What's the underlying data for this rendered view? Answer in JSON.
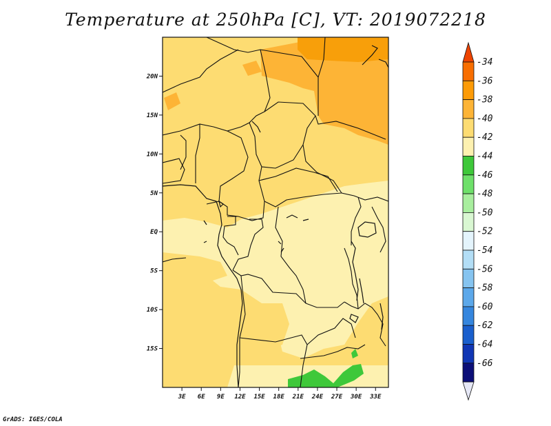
{
  "title": "Temperature at 250hPa [C], VT: 2019072218",
  "footer": "GrADS: IGES/COLA",
  "map": {
    "lon_range": [
      0,
      35
    ],
    "lat_range": [
      -20,
      25
    ],
    "lon_ticks": [
      "3E",
      "6E",
      "9E",
      "12E",
      "15E",
      "18E",
      "21E",
      "24E",
      "27E",
      "30E",
      "33E"
    ],
    "lat_ticks": [
      "20N",
      "15N",
      "10N",
      "5N",
      "EQ",
      "5S",
      "10S",
      "15S"
    ],
    "background_field": "#fdf1b0"
  },
  "colorbar": {
    "labels": [
      "-34",
      "-36",
      "-38",
      "-40",
      "-42",
      "-44",
      "-46",
      "-48",
      "-50",
      "-52",
      "-54",
      "-56",
      "-58",
      "-60",
      "-62",
      "-64",
      "-66"
    ],
    "colors": [
      "#ee4400",
      "#f86e00",
      "#fd9b07",
      "#fdb436",
      "#fddc72",
      "#fdf1b0",
      "#3ec83a",
      "#6ee06a",
      "#a8ee9e",
      "#d9f7d2",
      "#e4f4fc",
      "#b3def6",
      "#86c4f0",
      "#5ca8ea",
      "#3586de",
      "#1a5fcd",
      "#1036b4",
      "#0c0f78",
      "#e6e8f6"
    ]
  }
}
